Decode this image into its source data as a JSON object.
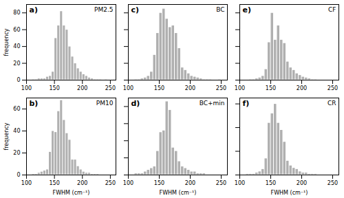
{
  "chart_data": [
    {
      "type": "bar",
      "title": "PM2.5",
      "annotations": [
        "a)"
      ],
      "ylabel": "frequency",
      "bins": [
        100,
        105,
        110,
        115,
        120,
        125,
        130,
        135,
        140,
        145,
        150,
        155,
        160,
        165,
        170,
        175,
        180,
        185,
        190,
        195,
        200,
        205,
        210,
        215,
        220,
        225,
        230,
        235,
        240,
        245,
        250,
        255,
        260
      ],
      "values": [
        0,
        0,
        1,
        1,
        2,
        2,
        2,
        4,
        5,
        10,
        50,
        65,
        82,
        65,
        60,
        40,
        28,
        20,
        14,
        10,
        7,
        5,
        3,
        2,
        1,
        1,
        1,
        0,
        1,
        0,
        0,
        1
      ],
      "color": "#b0b0b0",
      "xlim": [
        100,
        260
      ],
      "xticks": [
        100,
        150,
        200,
        250
      ],
      "ylim": [
        0,
        90
      ],
      "yticks": [
        0,
        20,
        40,
        60,
        80
      ]
    },
    {
      "type": "bar",
      "title": "BC",
      "annotations": [
        "c)"
      ],
      "tick_labels": "x",
      "bins": [
        100,
        105,
        110,
        115,
        120,
        125,
        130,
        135,
        140,
        145,
        150,
        155,
        160,
        165,
        170,
        175,
        180,
        185,
        190,
        195,
        200,
        205,
        210,
        215,
        220,
        225,
        230,
        235,
        240,
        245,
        250,
        255,
        260
      ],
      "values": [
        0,
        0,
        1,
        1,
        2,
        3,
        5,
        10,
        30,
        56,
        80,
        85,
        73,
        63,
        65,
        56,
        38,
        15,
        12,
        8,
        5,
        4,
        3,
        2,
        1,
        1,
        1,
        0,
        0,
        1,
        0,
        0
      ],
      "color": "#b0b0b0",
      "xlim": [
        100,
        260
      ],
      "xticks": [
        100,
        150,
        200,
        250
      ],
      "ylim": [
        0,
        90
      ],
      "yticks": [
        0,
        20,
        40,
        60,
        80
      ]
    },
    {
      "type": "bar",
      "title": "CF",
      "annotations": [
        "e)"
      ],
      "tick_labels": "x",
      "bins": [
        100,
        105,
        110,
        115,
        120,
        125,
        130,
        135,
        140,
        145,
        150,
        155,
        160,
        165,
        170,
        175,
        180,
        185,
        190,
        195,
        200,
        205,
        210,
        215,
        220,
        225,
        230,
        235,
        240,
        245,
        250,
        255,
        260
      ],
      "values": [
        0,
        0,
        0,
        1,
        1,
        2,
        3,
        5,
        13,
        45,
        80,
        48,
        65,
        48,
        44,
        22,
        15,
        12,
        8,
        6,
        4,
        3,
        2,
        1,
        1,
        0,
        0,
        0,
        0,
        0,
        0,
        0
      ],
      "color": "#b0b0b0",
      "xlim": [
        100,
        260
      ],
      "xticks": [
        100,
        150,
        200,
        250
      ],
      "ylim": [
        0,
        90
      ],
      "yticks": [
        0,
        20,
        40,
        60,
        80
      ]
    },
    {
      "type": "bar",
      "title": "PM10",
      "annotations": [
        "b)"
      ],
      "xlabel": "FWHM (cm⁻¹)",
      "ylabel": "frequency",
      "bins": [
        100,
        105,
        110,
        115,
        120,
        125,
        130,
        135,
        140,
        145,
        150,
        155,
        160,
        165,
        170,
        175,
        180,
        185,
        190,
        195,
        200,
        205,
        210,
        215,
        220,
        225,
        230,
        235,
        240,
        245,
        250,
        255,
        260
      ],
      "values": [
        0,
        0,
        1,
        1,
        2,
        3,
        4,
        5,
        21,
        40,
        39,
        58,
        68,
        50,
        38,
        32,
        14,
        14,
        8,
        5,
        3,
        2,
        2,
        1,
        1,
        1,
        0,
        0,
        0,
        0,
        0,
        0
      ],
      "color": "#b0b0b0",
      "xlim": [
        100,
        260
      ],
      "xticks": [
        100,
        150,
        200,
        250
      ],
      "ylim": [
        0,
        70
      ],
      "yticks": [
        0,
        20,
        40,
        60
      ]
    },
    {
      "type": "bar",
      "title": "BC+min",
      "annotations": [
        "d)"
      ],
      "xlabel": "FWHM (cm⁻¹)",
      "tick_labels": "x",
      "bins": [
        100,
        105,
        110,
        115,
        120,
        125,
        130,
        135,
        140,
        145,
        150,
        155,
        160,
        165,
        170,
        175,
        180,
        185,
        190,
        195,
        200,
        205,
        210,
        215,
        220,
        225,
        230,
        235,
        240,
        245,
        250,
        255,
        260
      ],
      "values": [
        0,
        0,
        1,
        1,
        1,
        2,
        3,
        4,
        5,
        14,
        25,
        26,
        43,
        38,
        16,
        14,
        8,
        5,
        4,
        3,
        2,
        2,
        1,
        1,
        1,
        0,
        0,
        0,
        0,
        0,
        0,
        0
      ],
      "color": "#b0b0b0",
      "xlim": [
        100,
        260
      ],
      "xticks": [
        100,
        150,
        200,
        250
      ],
      "ylim": [
        0,
        45
      ],
      "yticks": [
        0,
        10,
        20,
        30,
        40
      ]
    },
    {
      "type": "bar",
      "title": "CR",
      "annotations": [
        "f)"
      ],
      "xlabel": "FWHM (cm⁻¹)",
      "tick_labels": "x",
      "bins": [
        100,
        105,
        110,
        115,
        120,
        125,
        130,
        135,
        140,
        145,
        150,
        155,
        160,
        165,
        170,
        175,
        180,
        185,
        190,
        195,
        200,
        205,
        210,
        215,
        220,
        225,
        230,
        235,
        240,
        245,
        250,
        255,
        260
      ],
      "values": [
        0,
        0,
        1,
        1,
        1,
        2,
        3,
        5,
        14,
        44,
        52,
        60,
        44,
        38,
        28,
        12,
        8,
        6,
        5,
        3,
        2,
        2,
        1,
        1,
        1,
        0,
        0,
        0,
        0,
        0,
        0,
        0
      ],
      "color": "#b0b0b0",
      "xlim": [
        100,
        260
      ],
      "xticks": [
        100,
        150,
        200,
        250
      ],
      "ylim": [
        0,
        65
      ],
      "yticks": [
        0,
        20,
        40,
        60
      ]
    }
  ]
}
